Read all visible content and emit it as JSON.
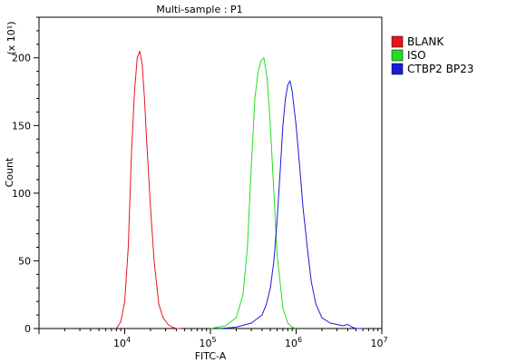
{
  "chart_data": {
    "type": "line",
    "title": "Multi-sample : P1",
    "xlabel": "FITC-A",
    "ylabel": "Count",
    "y_multiplier": "(x 10¹)",
    "x_scale": "log",
    "xlim": [
      1000,
      10000000
    ],
    "ylim": [
      0,
      230
    ],
    "x_ticks": [
      {
        "value": 10000,
        "base": "10",
        "exp": "4"
      },
      {
        "value": 100000,
        "base": "10",
        "exp": "5"
      },
      {
        "value": 1000000,
        "base": "10",
        "exp": "6"
      },
      {
        "value": 10000000,
        "base": "10",
        "exp": "7"
      }
    ],
    "y_ticks": [
      0,
      50,
      100,
      150,
      200
    ],
    "legend_position": "top-right",
    "series": [
      {
        "name": "BLANK",
        "color": "#e8141e",
        "x": [
          8000,
          9000,
          10000,
          11000,
          12000,
          13000,
          14000,
          15000,
          16000,
          17000,
          18000,
          20000,
          22000,
          25000,
          28000,
          32000,
          36000,
          40000,
          45000
        ],
        "y": [
          0,
          5,
          20,
          60,
          130,
          175,
          200,
          205,
          195,
          170,
          140,
          90,
          50,
          18,
          8,
          3,
          1,
          0,
          0
        ]
      },
      {
        "name": "ISO",
        "color": "#22dd22",
        "x": [
          100000,
          150000,
          200000,
          240000,
          270000,
          300000,
          330000,
          360000,
          390000,
          420000,
          460000,
          500000,
          550000,
          600000,
          700000,
          800000,
          900000,
          1000000
        ],
        "y": [
          0,
          2,
          8,
          25,
          60,
          120,
          170,
          190,
          198,
          200,
          185,
          150,
          100,
          55,
          15,
          4,
          1,
          0
        ]
      },
      {
        "name": "CTBP2 BP23",
        "color": "#1a1adc",
        "x": [
          130000,
          200000,
          300000,
          400000,
          450000,
          500000,
          550000,
          600000,
          650000,
          700000,
          750000,
          800000,
          850000,
          900000,
          1000000,
          1100000,
          1200000,
          1350000,
          1500000,
          1700000,
          2000000,
          2500000,
          3000000,
          3500000,
          4000000,
          4500000,
          5000000,
          6000000
        ],
        "y": [
          0,
          1,
          4,
          10,
          18,
          30,
          50,
          80,
          115,
          150,
          170,
          180,
          183,
          175,
          150,
          120,
          90,
          60,
          35,
          18,
          8,
          4,
          3,
          2,
          3,
          1,
          0,
          0
        ]
      }
    ]
  }
}
